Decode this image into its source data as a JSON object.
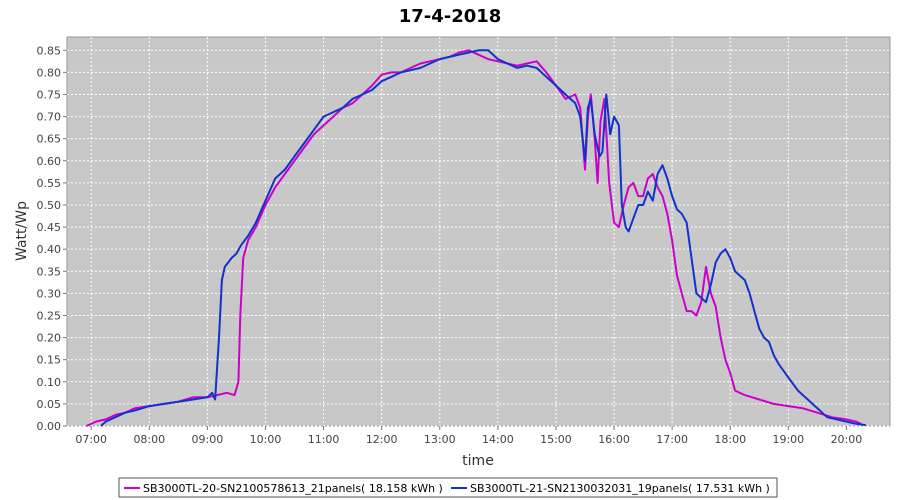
{
  "chart_data": {
    "type": "line",
    "title": "17-4-2018",
    "xlabel": "time",
    "ylabel": "Watt/Wp",
    "xlim": [
      "06:35",
      "20:45"
    ],
    "ylim": [
      0,
      0.88
    ],
    "grid": true,
    "legend_position": "bottom",
    "x_ticks": [
      "07:00",
      "08:00",
      "09:00",
      "10:00",
      "11:00",
      "12:00",
      "13:00",
      "14:00",
      "15:00",
      "16:00",
      "17:00",
      "18:00",
      "19:00",
      "20:00"
    ],
    "y_ticks": [
      "0.00",
      "0.05",
      "0.10",
      "0.15",
      "0.20",
      "0.25",
      "0.30",
      "0.35",
      "0.40",
      "0.45",
      "0.50",
      "0.55",
      "0.60",
      "0.65",
      "0.70",
      "0.75",
      "0.80",
      "0.85"
    ],
    "series": [
      {
        "name": "SB3000TL-20-SN2100578613_21panels( 18.158 kWh )",
        "color": "#cc00cc",
        "points": [
          [
            "06:55",
            0.0
          ],
          [
            "07:05",
            0.01
          ],
          [
            "07:15",
            0.015
          ],
          [
            "07:25",
            0.025
          ],
          [
            "07:35",
            0.03
          ],
          [
            "07:45",
            0.04
          ],
          [
            "08:00",
            0.045
          ],
          [
            "08:15",
            0.05
          ],
          [
            "08:30",
            0.055
          ],
          [
            "08:45",
            0.065
          ],
          [
            "09:00",
            0.065
          ],
          [
            "09:10",
            0.07
          ],
          [
            "09:20",
            0.075
          ],
          [
            "09:28",
            0.07
          ],
          [
            "09:32",
            0.1
          ],
          [
            "09:34",
            0.25
          ],
          [
            "09:37",
            0.38
          ],
          [
            "09:42",
            0.42
          ],
          [
            "09:50",
            0.45
          ],
          [
            "10:00",
            0.5
          ],
          [
            "10:10",
            0.54
          ],
          [
            "10:20",
            0.57
          ],
          [
            "10:30",
            0.6
          ],
          [
            "10:40",
            0.63
          ],
          [
            "10:50",
            0.66
          ],
          [
            "11:00",
            0.68
          ],
          [
            "11:10",
            0.7
          ],
          [
            "11:20",
            0.72
          ],
          [
            "11:30",
            0.73
          ],
          [
            "11:40",
            0.75
          ],
          [
            "11:50",
            0.77
          ],
          [
            "12:00",
            0.795
          ],
          [
            "12:10",
            0.8
          ],
          [
            "12:20",
            0.8
          ],
          [
            "12:30",
            0.81
          ],
          [
            "12:40",
            0.82
          ],
          [
            "12:50",
            0.825
          ],
          [
            "13:00",
            0.83
          ],
          [
            "13:10",
            0.835
          ],
          [
            "13:20",
            0.845
          ],
          [
            "13:30",
            0.85
          ],
          [
            "13:40",
            0.84
          ],
          [
            "13:50",
            0.83
          ],
          [
            "14:00",
            0.825
          ],
          [
            "14:10",
            0.82
          ],
          [
            "14:20",
            0.815
          ],
          [
            "14:30",
            0.82
          ],
          [
            "14:40",
            0.825
          ],
          [
            "14:50",
            0.8
          ],
          [
            "15:00",
            0.77
          ],
          [
            "15:10",
            0.74
          ],
          [
            "15:20",
            0.75
          ],
          [
            "15:25",
            0.72
          ],
          [
            "15:30",
            0.58
          ],
          [
            "15:33",
            0.7
          ],
          [
            "15:36",
            0.75
          ],
          [
            "15:40",
            0.65
          ],
          [
            "15:43",
            0.55
          ],
          [
            "15:46",
            0.69
          ],
          [
            "15:50",
            0.74
          ],
          [
            "15:55",
            0.55
          ],
          [
            "16:00",
            0.46
          ],
          [
            "16:05",
            0.45
          ],
          [
            "16:10",
            0.5
          ],
          [
            "16:15",
            0.54
          ],
          [
            "16:20",
            0.55
          ],
          [
            "16:25",
            0.52
          ],
          [
            "16:30",
            0.52
          ],
          [
            "16:35",
            0.56
          ],
          [
            "16:40",
            0.57
          ],
          [
            "16:45",
            0.54
          ],
          [
            "16:50",
            0.52
          ],
          [
            "16:55",
            0.48
          ],
          [
            "17:00",
            0.42
          ],
          [
            "17:05",
            0.34
          ],
          [
            "17:10",
            0.3
          ],
          [
            "17:15",
            0.26
          ],
          [
            "17:20",
            0.26
          ],
          [
            "17:25",
            0.25
          ],
          [
            "17:30",
            0.28
          ],
          [
            "17:35",
            0.36
          ],
          [
            "17:40",
            0.3
          ],
          [
            "17:45",
            0.27
          ],
          [
            "17:50",
            0.2
          ],
          [
            "17:55",
            0.15
          ],
          [
            "18:00",
            0.12
          ],
          [
            "18:05",
            0.08
          ],
          [
            "18:15",
            0.07
          ],
          [
            "18:30",
            0.06
          ],
          [
            "18:45",
            0.05
          ],
          [
            "19:00",
            0.045
          ],
          [
            "19:15",
            0.04
          ],
          [
            "19:30",
            0.03
          ],
          [
            "19:45",
            0.02
          ],
          [
            "20:00",
            0.015
          ],
          [
            "20:10",
            0.01
          ],
          [
            "20:15",
            0.005
          ]
        ]
      },
      {
        "name": "SB3000TL-21-SN2130032031_19panels( 17.531 kWh )",
        "color": "#1133cc",
        "points": [
          [
            "07:10",
            0.0
          ],
          [
            "07:15",
            0.01
          ],
          [
            "07:25",
            0.02
          ],
          [
            "07:35",
            0.03
          ],
          [
            "07:45",
            0.035
          ],
          [
            "08:00",
            0.045
          ],
          [
            "08:15",
            0.05
          ],
          [
            "08:30",
            0.055
          ],
          [
            "08:45",
            0.06
          ],
          [
            "09:00",
            0.065
          ],
          [
            "09:05",
            0.075
          ],
          [
            "09:08",
            0.06
          ],
          [
            "09:12",
            0.2
          ],
          [
            "09:15",
            0.33
          ],
          [
            "09:18",
            0.36
          ],
          [
            "09:25",
            0.38
          ],
          [
            "09:30",
            0.39
          ],
          [
            "09:35",
            0.41
          ],
          [
            "09:42",
            0.43
          ],
          [
            "09:50",
            0.46
          ],
          [
            "10:00",
            0.51
          ],
          [
            "10:10",
            0.56
          ],
          [
            "10:20",
            0.58
          ],
          [
            "10:30",
            0.61
          ],
          [
            "10:40",
            0.64
          ],
          [
            "10:50",
            0.67
          ],
          [
            "11:00",
            0.7
          ],
          [
            "11:10",
            0.71
          ],
          [
            "11:20",
            0.72
          ],
          [
            "11:30",
            0.74
          ],
          [
            "11:40",
            0.75
          ],
          [
            "11:50",
            0.76
          ],
          [
            "12:00",
            0.78
          ],
          [
            "12:10",
            0.79
          ],
          [
            "12:20",
            0.8
          ],
          [
            "12:30",
            0.805
          ],
          [
            "12:40",
            0.81
          ],
          [
            "12:50",
            0.82
          ],
          [
            "13:00",
            0.83
          ],
          [
            "13:10",
            0.835
          ],
          [
            "13:20",
            0.84
          ],
          [
            "13:30",
            0.845
          ],
          [
            "13:40",
            0.85
          ],
          [
            "13:50",
            0.85
          ],
          [
            "14:00",
            0.83
          ],
          [
            "14:10",
            0.82
          ],
          [
            "14:20",
            0.81
          ],
          [
            "14:30",
            0.815
          ],
          [
            "14:40",
            0.81
          ],
          [
            "14:50",
            0.79
          ],
          [
            "15:00",
            0.77
          ],
          [
            "15:10",
            0.75
          ],
          [
            "15:20",
            0.73
          ],
          [
            "15:25",
            0.7
          ],
          [
            "15:30",
            0.6
          ],
          [
            "15:33",
            0.72
          ],
          [
            "15:36",
            0.74
          ],
          [
            "15:40",
            0.66
          ],
          [
            "15:45",
            0.61
          ],
          [
            "15:48",
            0.62
          ],
          [
            "15:52",
            0.75
          ],
          [
            "15:56",
            0.66
          ],
          [
            "16:00",
            0.7
          ],
          [
            "16:05",
            0.68
          ],
          [
            "16:08",
            0.5
          ],
          [
            "16:12",
            0.45
          ],
          [
            "16:15",
            0.44
          ],
          [
            "16:20",
            0.47
          ],
          [
            "16:25",
            0.5
          ],
          [
            "16:30",
            0.5
          ],
          [
            "16:35",
            0.53
          ],
          [
            "16:40",
            0.51
          ],
          [
            "16:45",
            0.57
          ],
          [
            "16:50",
            0.59
          ],
          [
            "16:55",
            0.56
          ],
          [
            "17:00",
            0.52
          ],
          [
            "17:05",
            0.49
          ],
          [
            "17:10",
            0.48
          ],
          [
            "17:15",
            0.46
          ],
          [
            "17:20",
            0.38
          ],
          [
            "17:25",
            0.3
          ],
          [
            "17:30",
            0.29
          ],
          [
            "17:35",
            0.28
          ],
          [
            "17:40",
            0.32
          ],
          [
            "17:45",
            0.37
          ],
          [
            "17:50",
            0.39
          ],
          [
            "17:55",
            0.4
          ],
          [
            "18:00",
            0.38
          ],
          [
            "18:05",
            0.35
          ],
          [
            "18:10",
            0.34
          ],
          [
            "18:15",
            0.33
          ],
          [
            "18:20",
            0.3
          ],
          [
            "18:25",
            0.26
          ],
          [
            "18:30",
            0.22
          ],
          [
            "18:35",
            0.2
          ],
          [
            "18:40",
            0.19
          ],
          [
            "18:45",
            0.16
          ],
          [
            "18:50",
            0.14
          ],
          [
            "19:00",
            0.11
          ],
          [
            "19:10",
            0.08
          ],
          [
            "19:20",
            0.06
          ],
          [
            "19:30",
            0.04
          ],
          [
            "19:40",
            0.02
          ],
          [
            "19:50",
            0.015
          ],
          [
            "20:00",
            0.01
          ],
          [
            "20:10",
            0.005
          ],
          [
            "20:20",
            0.002
          ]
        ]
      }
    ]
  }
}
